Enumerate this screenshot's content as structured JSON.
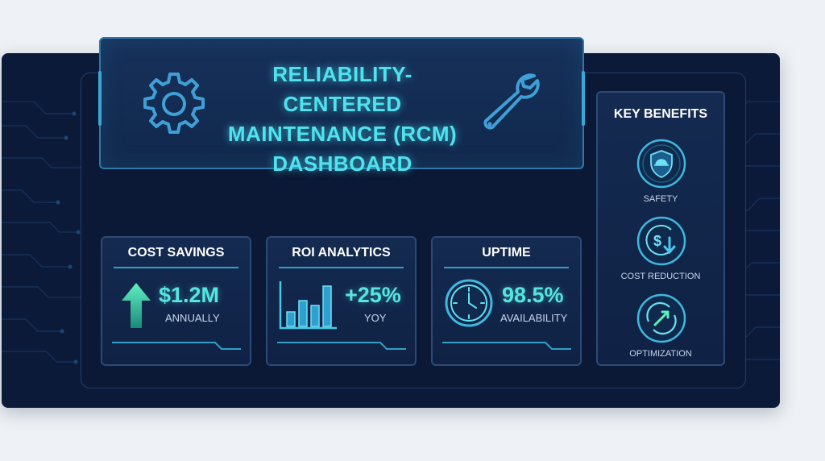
{
  "hero": {
    "title_line1": "RELIABILITY-CENTERED",
    "title_line2": "MAINTENANCE (RCM)",
    "title_line3": "DASHBOARD",
    "left_icon": "gear-icon",
    "right_icon": "wrench-icon"
  },
  "cards": [
    {
      "title": "COST SAVINGS",
      "value": "$1.2M",
      "sub": "ANNUALLY",
      "icon": "arrow-up-icon"
    },
    {
      "title": "ROI ANALYTICS",
      "value": "+25%",
      "sub": "YOY",
      "icon": "bar-chart-icon"
    },
    {
      "title": "UPTIME",
      "value": "98.5%",
      "sub": "AVAILABILITY",
      "icon": "clock-icon"
    }
  ],
  "benefits": {
    "title": "KEY BENEFITS",
    "items": [
      {
        "label": "SAFETY",
        "icon": "shield-helmet-icon"
      },
      {
        "label": "COST REDUCTION",
        "icon": "dollar-down-icon"
      },
      {
        "label": "OPTIMIZATION",
        "icon": "optimization-arrow-icon"
      }
    ]
  },
  "colors": {
    "background": "#0c1a3a",
    "panel": "#142a50",
    "accent": "#4fe3ef",
    "accent_green": "#55e6e1",
    "border": "#2b4b77"
  }
}
